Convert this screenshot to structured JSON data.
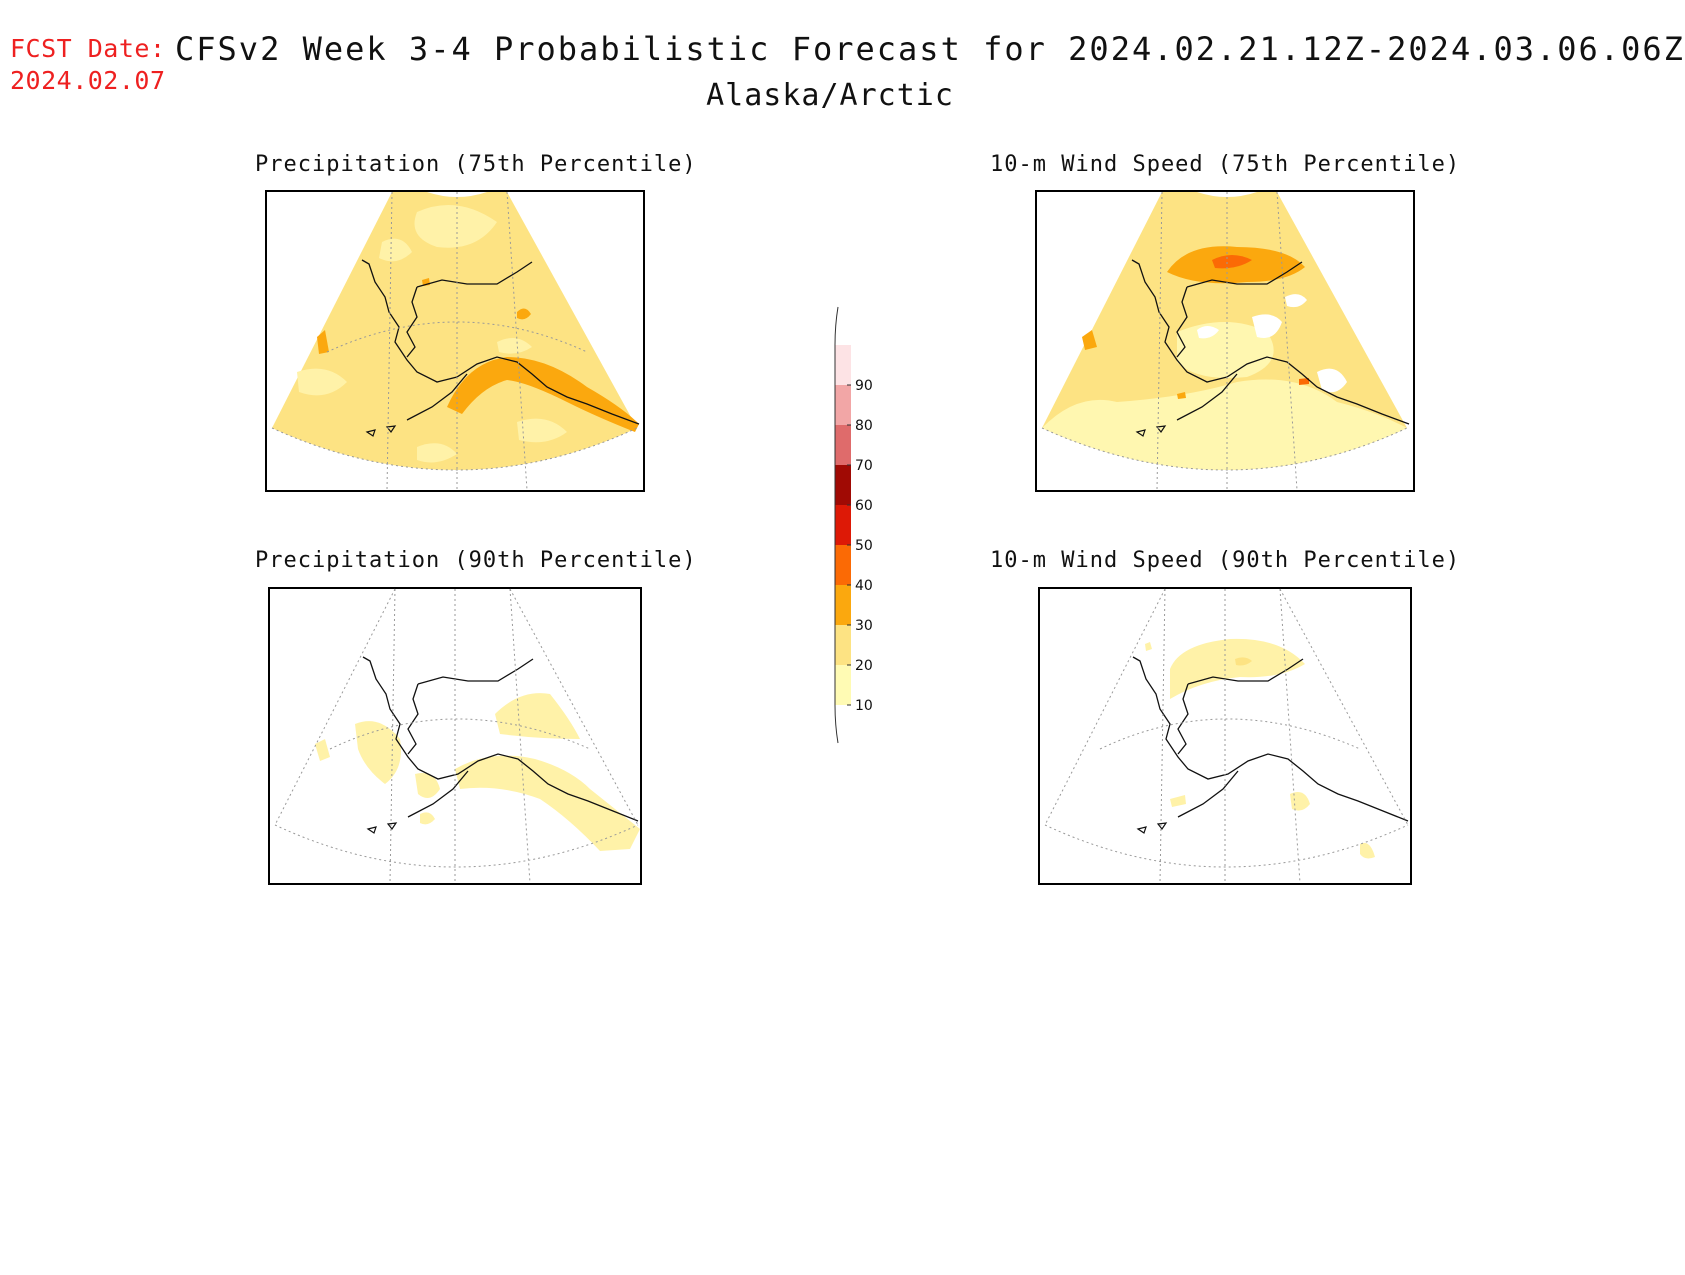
{
  "header": {
    "fcst_label": "FCST Date:",
    "fcst_date": "2024.02.07",
    "title": "CFSv2 Week 3-4 Probabilistic Forecast for 2024.02.21.12Z-2024.03.06.06Z",
    "region": "Alaska/Arctic"
  },
  "panels": [
    {
      "title": "Precipitation (75th Percentile)",
      "fill": "mid"
    },
    {
      "title": "10-m Wind Speed (75th Percentile)",
      "fill": "mid-wind"
    },
    {
      "title": "Precipitation (90th Percentile)",
      "fill": "sparse-precip"
    },
    {
      "title": "10-m Wind Speed (90th Percentile)",
      "fill": "sparse-wind"
    }
  ],
  "legend": {
    "levels": [
      "10",
      "20",
      "30",
      "40",
      "50",
      "60",
      "70",
      "80",
      "90"
    ],
    "colors": [
      "#fffbb4",
      "#fde383",
      "#fba80e",
      "#fb6a05",
      "#dd1906",
      "#a00a04",
      "#df6b6b",
      "#f2a6a6",
      "#fde3e5"
    ]
  },
  "colors": {
    "c10": "#fffbb4",
    "c20": "#fde383",
    "c30": "#fba80e",
    "c40": "#fb6a05",
    "fcst_label": "#ee2020"
  }
}
